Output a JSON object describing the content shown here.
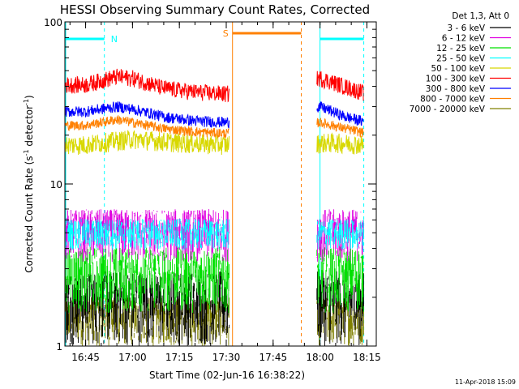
{
  "chart_data": {
    "type": "line",
    "title": "HESSI Observing Summary Count Rates, Corrected",
    "xlabel": "Start Time (02-Jun-16 16:38:22)",
    "ylabel": "Corrected Count Rate (s⁻¹ detector⁻¹)",
    "ylabel_parts": {
      "main": "Corrected Count Rate (s",
      "exp1": "-1",
      "mid": " detector",
      "exp2": "-1",
      "end": ")"
    },
    "yscale": "log",
    "ylim": [
      1,
      100
    ],
    "xlim": [
      "16:38:22",
      "18:18"
    ],
    "xticks": [
      "16:45",
      "17:00",
      "17:15",
      "17:30",
      "17:45",
      "18:00",
      "18:15"
    ],
    "yticks": [
      "1",
      "10",
      "100"
    ],
    "legend_title": "Det 1,3, Att 0",
    "legend_position": "right",
    "flags": [
      {
        "label": "N",
        "color": "#00ffff",
        "segments": [
          [
            "16:38",
            "16:51"
          ],
          [
            "18:00",
            "18:14"
          ]
        ]
      },
      {
        "label": "S",
        "color": "#ff8000",
        "segments": [
          [
            "17:32",
            "17:54"
          ]
        ]
      }
    ],
    "gaps": [
      [
        "17:31",
        "17:59"
      ]
    ],
    "series": [
      {
        "name": "3 - 6 keV",
        "color": "#000000",
        "values": [
          {
            "x": "16:45",
            "y": 1.3
          },
          {
            "x": "17:00",
            "y": 1.3
          },
          {
            "x": "17:15",
            "y": 1.3
          },
          {
            "x": "17:30",
            "y": 1.3
          },
          {
            "x": "18:05",
            "y": 1.3
          },
          {
            "x": "18:15",
            "y": 1.3
          }
        ]
      },
      {
        "name": "6 - 12 keV",
        "color": "#e000e0",
        "values": [
          {
            "x": "16:45",
            "y": 4.6
          },
          {
            "x": "17:00",
            "y": 4.6
          },
          {
            "x": "17:15",
            "y": 4.6
          },
          {
            "x": "17:30",
            "y": 4.6
          },
          {
            "x": "18:05",
            "y": 4.6
          },
          {
            "x": "18:15",
            "y": 4.6
          }
        ]
      },
      {
        "name": "12 - 25 keV",
        "color": "#00e000",
        "values": [
          {
            "x": "16:45",
            "y": 2.9
          },
          {
            "x": "17:00",
            "y": 2.9
          },
          {
            "x": "17:15",
            "y": 2.9
          },
          {
            "x": "17:30",
            "y": 2.9
          },
          {
            "x": "18:05",
            "y": 2.9
          },
          {
            "x": "18:15",
            "y": 2.9
          }
        ]
      },
      {
        "name": "25 - 50 keV",
        "color": "#00ffff",
        "values": [
          {
            "x": "16:45",
            "y": 5.2
          },
          {
            "x": "17:00",
            "y": 5.2
          },
          {
            "x": "17:15",
            "y": 5.2
          },
          {
            "x": "17:30",
            "y": 5.2
          },
          {
            "x": "18:05",
            "y": 5.2
          },
          {
            "x": "18:15",
            "y": 5.2
          }
        ]
      },
      {
        "name": "50 - 100 keV",
        "color": "#d8d800",
        "values": [
          {
            "x": "16:45",
            "y": 17.5
          },
          {
            "x": "17:00",
            "y": 19
          },
          {
            "x": "17:15",
            "y": 18
          },
          {
            "x": "17:30",
            "y": 17.5
          },
          {
            "x": "18:05",
            "y": 18
          },
          {
            "x": "18:15",
            "y": 17.5
          }
        ]
      },
      {
        "name": "100 - 300 keV",
        "color": "#ff0000",
        "values": [
          {
            "x": "16:45",
            "y": 41
          },
          {
            "x": "16:55",
            "y": 46
          },
          {
            "x": "17:00",
            "y": 45
          },
          {
            "x": "17:10",
            "y": 39
          },
          {
            "x": "17:20",
            "y": 37
          },
          {
            "x": "17:30",
            "y": 36
          },
          {
            "x": "18:00",
            "y": 45
          },
          {
            "x": "18:08",
            "y": 40
          },
          {
            "x": "18:15",
            "y": 36
          }
        ]
      },
      {
        "name": "300 - 800 keV",
        "color": "#0000ff",
        "values": [
          {
            "x": "16:45",
            "y": 28
          },
          {
            "x": "16:55",
            "y": 30
          },
          {
            "x": "17:00",
            "y": 29
          },
          {
            "x": "17:10",
            "y": 26
          },
          {
            "x": "17:20",
            "y": 24.5
          },
          {
            "x": "17:30",
            "y": 24
          },
          {
            "x": "18:00",
            "y": 30
          },
          {
            "x": "18:08",
            "y": 26
          },
          {
            "x": "18:15",
            "y": 24
          }
        ]
      },
      {
        "name": "800 - 7000 keV",
        "color": "#ff8000",
        "values": [
          {
            "x": "16:45",
            "y": 23
          },
          {
            "x": "16:55",
            "y": 25
          },
          {
            "x": "17:00",
            "y": 24
          },
          {
            "x": "17:10",
            "y": 22
          },
          {
            "x": "17:20",
            "y": 21
          },
          {
            "x": "17:30",
            "y": 20.5
          },
          {
            "x": "18:00",
            "y": 24
          },
          {
            "x": "18:08",
            "y": 22
          },
          {
            "x": "18:15",
            "y": 20.5
          }
        ]
      },
      {
        "name": "7000 - 20000 keV",
        "color": "#808000",
        "values": [
          {
            "x": "16:45",
            "y": 1.4
          },
          {
            "x": "17:00",
            "y": 1.4
          },
          {
            "x": "17:15",
            "y": 1.4
          },
          {
            "x": "17:30",
            "y": 1.4
          },
          {
            "x": "18:05",
            "y": 1.4
          },
          {
            "x": "18:15",
            "y": 1.4
          }
        ]
      }
    ],
    "footer_stamp": "11-Apr-2018 15:09"
  }
}
